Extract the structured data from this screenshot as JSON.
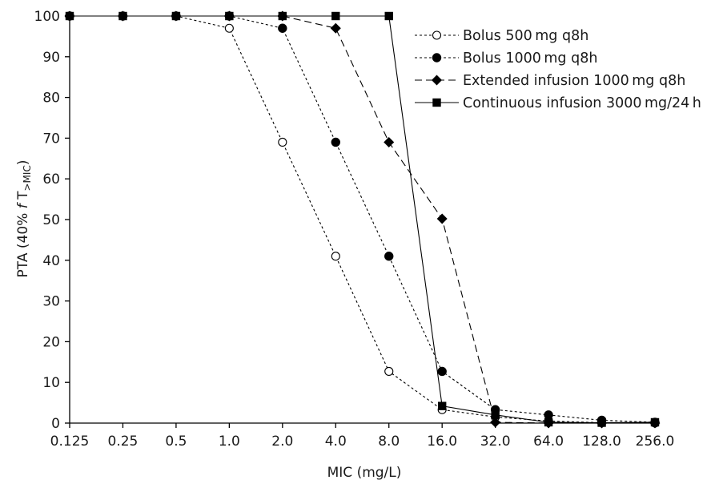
{
  "chart_data": {
    "type": "line",
    "title": "",
    "xlabel": "MIC (mg/L)",
    "ylabel": {
      "prefix": "PTA (40% ",
      "f": "f",
      "T": " T",
      "sub": ">MIC",
      "suffix": ")"
    },
    "x_scale": "log2",
    "categories": [
      "0.125",
      "0.25",
      "0.5",
      "1.0",
      "2.0",
      "4.0",
      "8.0",
      "16.0",
      "32.0",
      "64.0",
      "128.0",
      "256.0"
    ],
    "x": [
      0.125,
      0.25,
      0.5,
      1,
      2,
      4,
      8,
      16,
      32,
      64,
      128,
      256
    ],
    "ylim": [
      0,
      100
    ],
    "yticks": [
      0,
      10,
      20,
      30,
      40,
      50,
      60,
      70,
      80,
      90,
      100
    ],
    "grid": false,
    "legend_position": "top-right",
    "series": [
      {
        "name": "Bolus 500 mg q8h",
        "line": "dotted",
        "marker": "open-circle",
        "values": [
          100,
          100,
          100,
          97,
          69,
          41,
          12.7,
          3.3,
          1.5,
          0.5,
          0.1,
          0
        ]
      },
      {
        "name": "Bolus 1000 mg q8h",
        "line": "dotted",
        "marker": "filled-circle",
        "values": [
          100,
          100,
          100,
          100,
          97,
          69,
          41,
          12.7,
          3.3,
          2.0,
          0.7,
          0.2
        ]
      },
      {
        "name": "Extended infusion 1000 mg q8h",
        "line": "dashed",
        "marker": "filled-diamond",
        "values": [
          100,
          100,
          100,
          100,
          100,
          97,
          69,
          50.2,
          0.2,
          0,
          0,
          0
        ]
      },
      {
        "name": "Continuous infusion 3000 mg/24 h",
        "line": "solid",
        "marker": "filled-square",
        "values": [
          100,
          100,
          100,
          100,
          100,
          100,
          100,
          4.2,
          2.0,
          0.2,
          0.1,
          0.2
        ]
      }
    ]
  }
}
